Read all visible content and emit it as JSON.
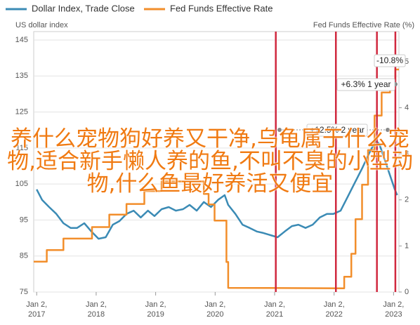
{
  "chart_data": {
    "type": "line",
    "overlay_text": "养什么宠物狗好养又干净,乌龟属于什么宠物,适合新手懒人养的鱼,不叫不臭的小型动物,什么鱼最好养活又便宜",
    "ylabel": "US dollar index",
    "y2label": "Fed Funds Effective Rate (%)",
    "xlim": [
      2016.95,
      2023.09
    ],
    "xticks": [
      {
        "value": 2017,
        "label": "Jan 2, 2017"
      },
      {
        "value": 2018,
        "label": "Jan 2, 2018"
      },
      {
        "value": 2019,
        "label": "Jan 2, 2019"
      },
      {
        "value": 2020,
        "label": "Jan 2, 2020"
      },
      {
        "value": 2021,
        "label": "Jan 2, 2021"
      },
      {
        "value": 2022,
        "label": "Jan 2, 2022"
      },
      {
        "value": 2023,
        "label": "Jan 2, 2023"
      }
    ],
    "ylim": [
      75,
      145
    ],
    "yticks": [
      75,
      85,
      95,
      105,
      115,
      125,
      135,
      145
    ],
    "y2lim": [
      0,
      5.47
    ],
    "y2ticks": [
      0,
      1,
      2,
      3,
      4,
      5
    ],
    "grid": true,
    "vlines": [
      2021.02,
      2022.03,
      2022.72,
      2023.03
    ],
    "vline_color": "#d0283e",
    "annotations": [
      "-10.8%",
      "+6.3% 1 year",
      "+12.5% 2 year"
    ],
    "series": [
      {
        "name": "Dollar Index, Trade Close",
        "color": "#3b8bb5",
        "x": [
          2017.0,
          2017.09,
          2017.21,
          2017.33,
          2017.45,
          2017.57,
          2017.68,
          2017.8,
          2017.92,
          2018.04,
          2018.16,
          2018.28,
          2018.39,
          2018.51,
          2018.63,
          2018.75,
          2018.87,
          2018.98,
          2019.1,
          2019.22,
          2019.34,
          2019.46,
          2019.57,
          2019.69,
          2019.81,
          2019.93,
          2020.05,
          2020.16,
          2020.22,
          2020.34,
          2020.46,
          2020.58,
          2020.7,
          2020.81,
          2020.93,
          2021.05,
          2021.17,
          2021.29,
          2021.4,
          2021.52,
          2021.64,
          2021.76,
          2021.88,
          2021.99,
          2022.11,
          2022.23,
          2022.35,
          2022.47,
          2022.58,
          2022.7,
          2022.76,
          2022.86,
          2022.94,
          2023.02,
          2023.06
        ],
        "values": [
          103.5,
          100.6,
          98.6,
          96.7,
          94.1,
          92.8,
          92.8,
          94.1,
          91.8,
          89.8,
          90.2,
          93.7,
          94.7,
          96.7,
          97.6,
          95.7,
          97.6,
          96.1,
          98.0,
          98.6,
          97.6,
          98.0,
          99.2,
          97.6,
          100.0,
          98.6,
          100.6,
          101.9,
          99.2,
          96.7,
          93.7,
          92.8,
          91.8,
          91.4,
          90.8,
          90.2,
          91.8,
          93.3,
          93.7,
          92.8,
          93.7,
          95.7,
          96.7,
          96.7,
          97.6,
          101.5,
          105.4,
          109.3,
          113.2,
          117.1,
          116.1,
          111.3,
          107.4,
          103.5,
          101.9
        ]
      },
      {
        "name": "Fed Funds Effective Rate",
        "color": "#f28e2b",
        "axis": "y2",
        "x": [
          2016.95,
          2017.17,
          2017.17,
          2017.45,
          2017.45,
          2017.93,
          2017.93,
          2018.22,
          2018.22,
          2018.51,
          2018.51,
          2018.81,
          2018.81,
          2019.1,
          2019.1,
          2019.81,
          2019.81,
          2019.89,
          2019.89,
          2019.99,
          2019.99,
          2020.19,
          2020.19,
          2020.22,
          2020.22,
          2022.17,
          2022.17,
          2022.29,
          2022.29,
          2022.36,
          2022.36,
          2022.47,
          2022.47,
          2022.57,
          2022.57,
          2022.68,
          2022.68,
          2022.8,
          2022.8,
          2022.94,
          2022.94,
          2023.03,
          2023.03,
          2023.09
        ],
        "values": [
          0.66,
          0.66,
          0.91,
          0.91,
          1.16,
          1.16,
          1.41,
          1.41,
          1.68,
          1.68,
          1.91,
          1.91,
          2.19,
          2.19,
          2.4,
          2.4,
          2.13,
          2.13,
          1.9,
          1.9,
          1.55,
          1.55,
          0.65,
          0.65,
          0.09,
          0.08,
          0.33,
          0.33,
          0.83,
          0.83,
          1.58,
          1.58,
          2.33,
          2.33,
          3.08,
          3.08,
          3.83,
          3.83,
          4.33,
          4.33,
          4.58,
          4.58,
          4.83,
          4.83
        ]
      }
    ]
  }
}
